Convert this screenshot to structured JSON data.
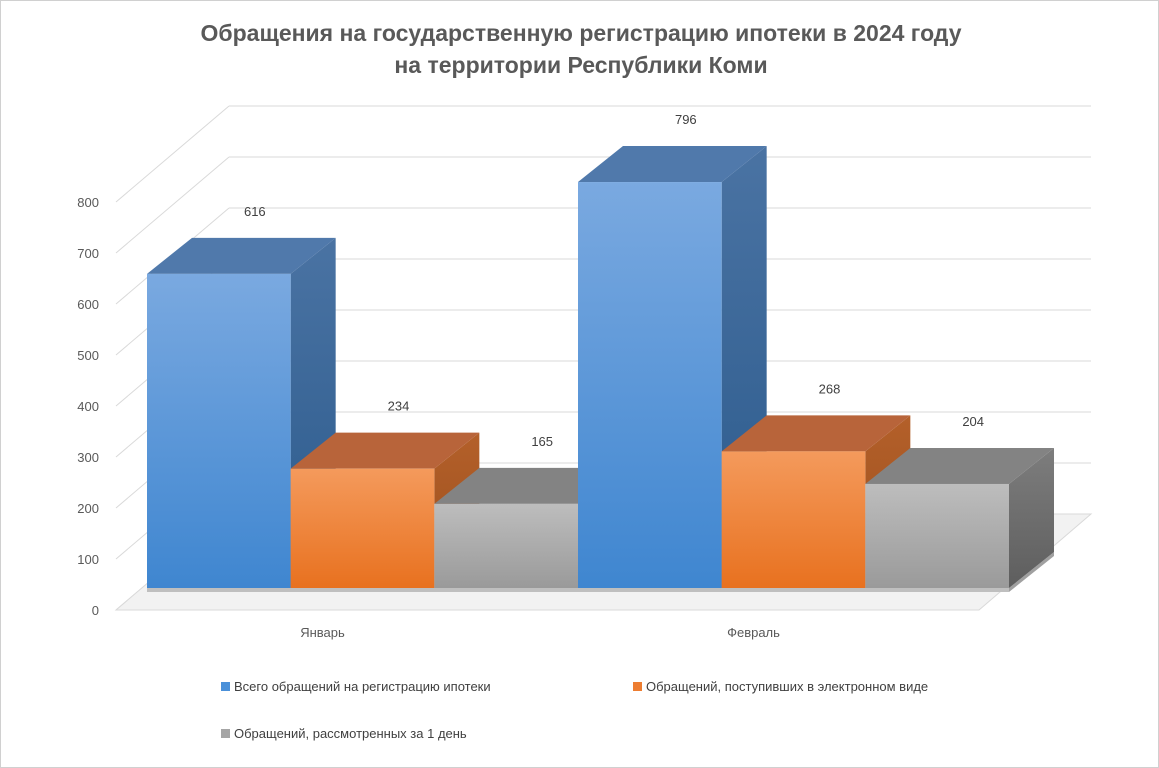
{
  "chart_data": {
    "type": "bar",
    "title": [
      "Обращения на государственную регистрацию ипотеки в 2024 году",
      "на территории Республики Коми"
    ],
    "categories": [
      "Январь",
      "Февраль"
    ],
    "series": [
      {
        "name": "Всего обращений на регистрацию ипотеки",
        "values": [
          616,
          796
        ],
        "color": "#4a90d9"
      },
      {
        "name": "Обращений, поступивших в электронном виде",
        "values": [
          234,
          268
        ],
        "color": "#ed7d31"
      },
      {
        "name": "Обращений, рассмотренных за 1 день",
        "values": [
          165,
          204
        ],
        "color": "#a5a5a5"
      }
    ],
    "yticks": [
      0,
      100,
      200,
      300,
      400,
      500,
      600,
      700,
      800
    ],
    "ylim": [
      0,
      800
    ],
    "grid": true,
    "legend": "bottom",
    "style": "3d-columns"
  }
}
